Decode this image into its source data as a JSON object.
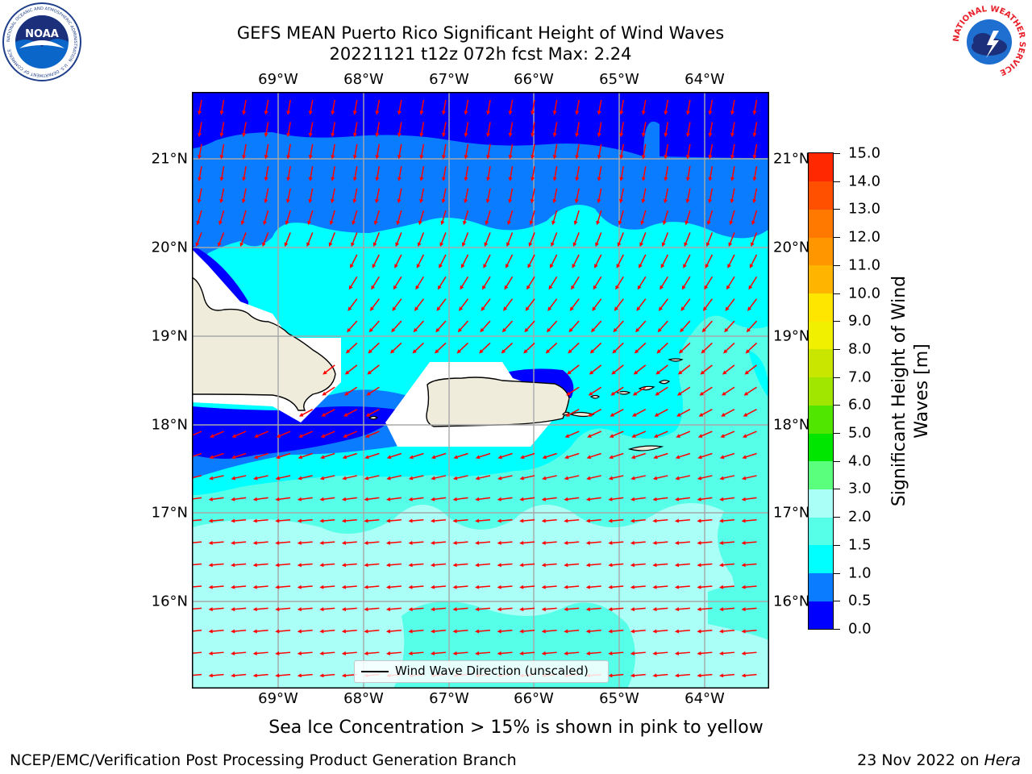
{
  "title": {
    "line1": "GEFS MEAN Puerto Rico Significant Height of Wind Waves",
    "line2": "20221121 t12z 072h fcst   Max: 2.24"
  },
  "map": {
    "lon_labels": [
      "69°W",
      "68°W",
      "67°W",
      "66°W",
      "65°W",
      "64°W"
    ],
    "lat_labels": [
      "21°N",
      "20°N",
      "19°N",
      "18°N",
      "17°N",
      "16°N"
    ],
    "legend_label": "Wind Wave Direction (unscaled)",
    "arrow_color": "#ff0000",
    "land_color": "#efecdc"
  },
  "colorbar": {
    "title": "Significant Height of Wind Waves [m]",
    "tick_labels": [
      "0.0",
      "0.5",
      "1.0",
      "1.5",
      "2.0",
      "3.0",
      "4.0",
      "5.0",
      "6.0",
      "7.0",
      "8.0",
      "9.0",
      "10.0",
      "11.0",
      "12.0",
      "13.0",
      "14.0",
      "15.0"
    ],
    "colors": [
      "#0000ff",
      "#0a7cff",
      "#00ffff",
      "#56ffe8",
      "#aafff6",
      "#5aff7e",
      "#00e600",
      "#50e600",
      "#a0e600",
      "#c8e600",
      "#f0f000",
      "#ffe600",
      "#ffb400",
      "#ff9600",
      "#ff7800",
      "#ff5000",
      "#ff2800"
    ]
  },
  "footer": {
    "note": "Sea Ice Concentration > 15% is shown in pink to yellow",
    "left": "NCEP/EMC/Verification Post Processing Product Generation Branch",
    "right_date": "23 Nov 2022 on",
    "right_host": "Hera"
  },
  "logos": {
    "noaa": "NOAA",
    "nws": "NATIONAL WEATHER SERVICE",
    "noaa_ring": "NATIONAL OCEANIC AND ATMOSPHERIC ADMINISTRATION · U.S. DEPARTMENT OF COMMERCE"
  }
}
